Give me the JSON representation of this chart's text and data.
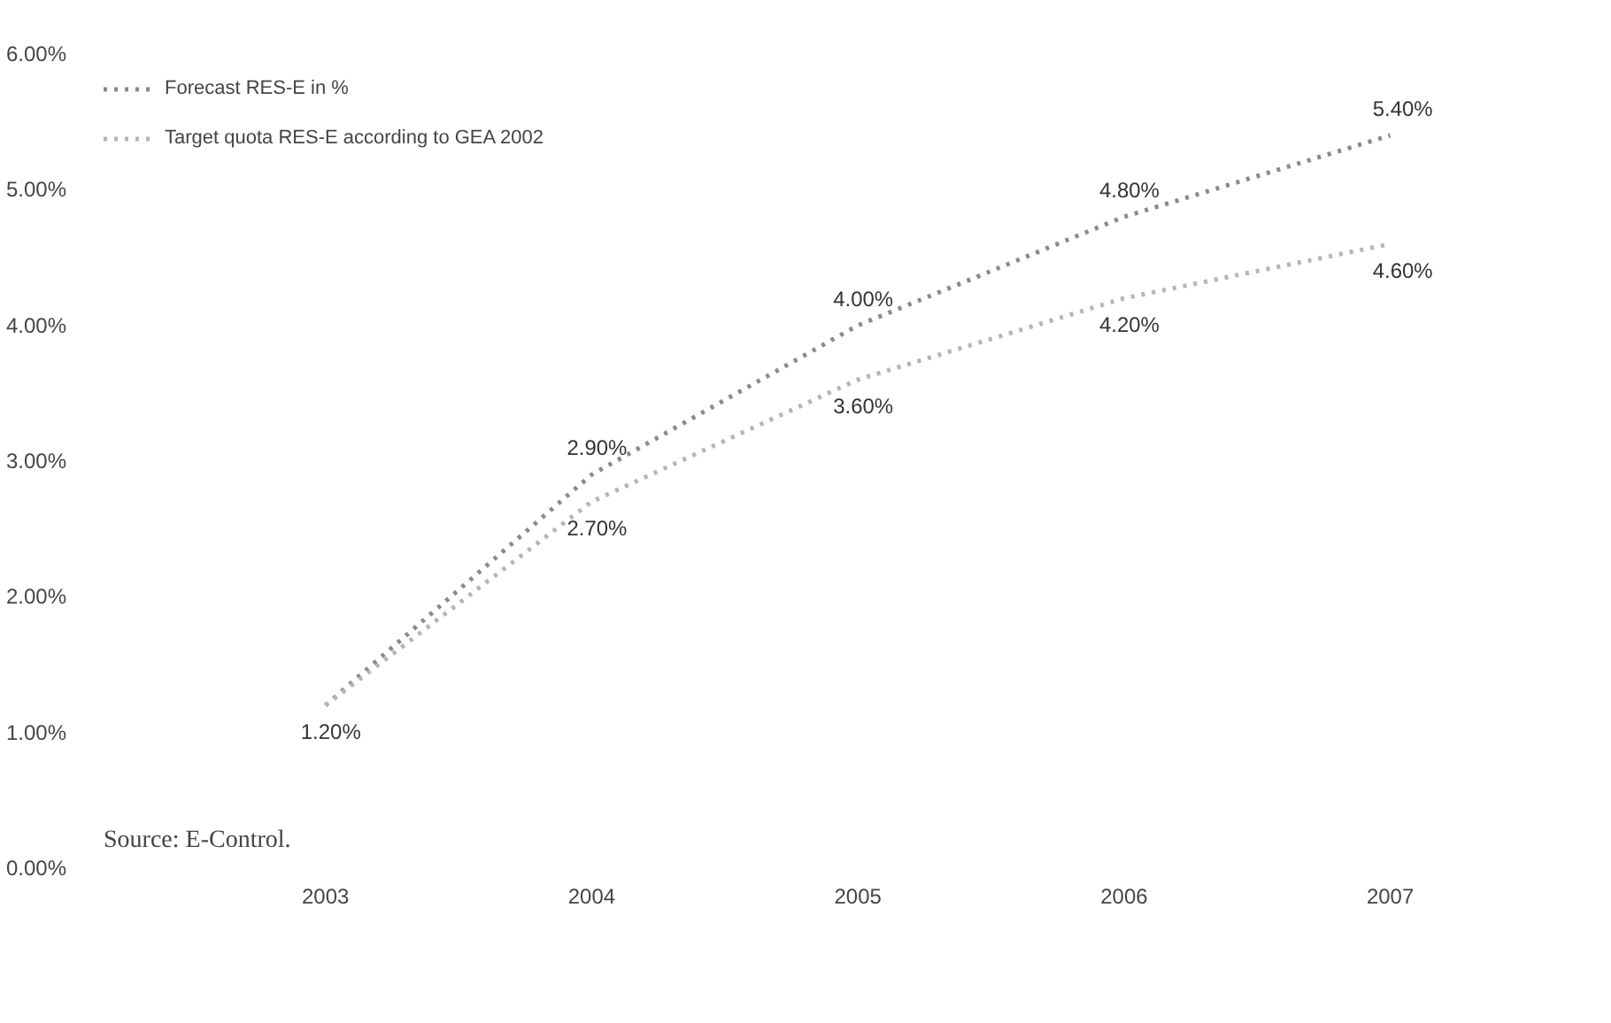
{
  "chart_data": {
    "type": "line",
    "categories": [
      "2003",
      "2004",
      "2005",
      "2006",
      "2007"
    ],
    "series": [
      {
        "name": "Forecast RES-E in %",
        "color": "#8a8a8a",
        "values": [
          1.2,
          2.9,
          4.0,
          4.8,
          5.4
        ],
        "value_labels": [
          "1.20%",
          "2.90%",
          "4.00%",
          "4.80%",
          "5.40%"
        ]
      },
      {
        "name": "Target quota RES-E according to GEA 2002",
        "color": "#b5b5b5",
        "values": [
          1.2,
          2.7,
          3.6,
          4.2,
          4.6
        ],
        "value_labels": [
          null,
          "2.70%",
          "3.60%",
          "4.20%",
          "4.60%"
        ]
      }
    ],
    "ylim": [
      0,
      6
    ],
    "yticks": [
      {
        "value": 0,
        "label": "0.00%"
      },
      {
        "value": 1,
        "label": "1.00%"
      },
      {
        "value": 2,
        "label": "2.00%"
      },
      {
        "value": 3,
        "label": "3.00%"
      },
      {
        "value": 4,
        "label": "4.00%"
      },
      {
        "value": 5,
        "label": "5.00%"
      },
      {
        "value": 6,
        "label": "6.00%"
      }
    ],
    "grid": false,
    "legend": "top left",
    "line_style": "dotted",
    "marker": "none",
    "annotations": [
      "Source: E-Control."
    ]
  }
}
